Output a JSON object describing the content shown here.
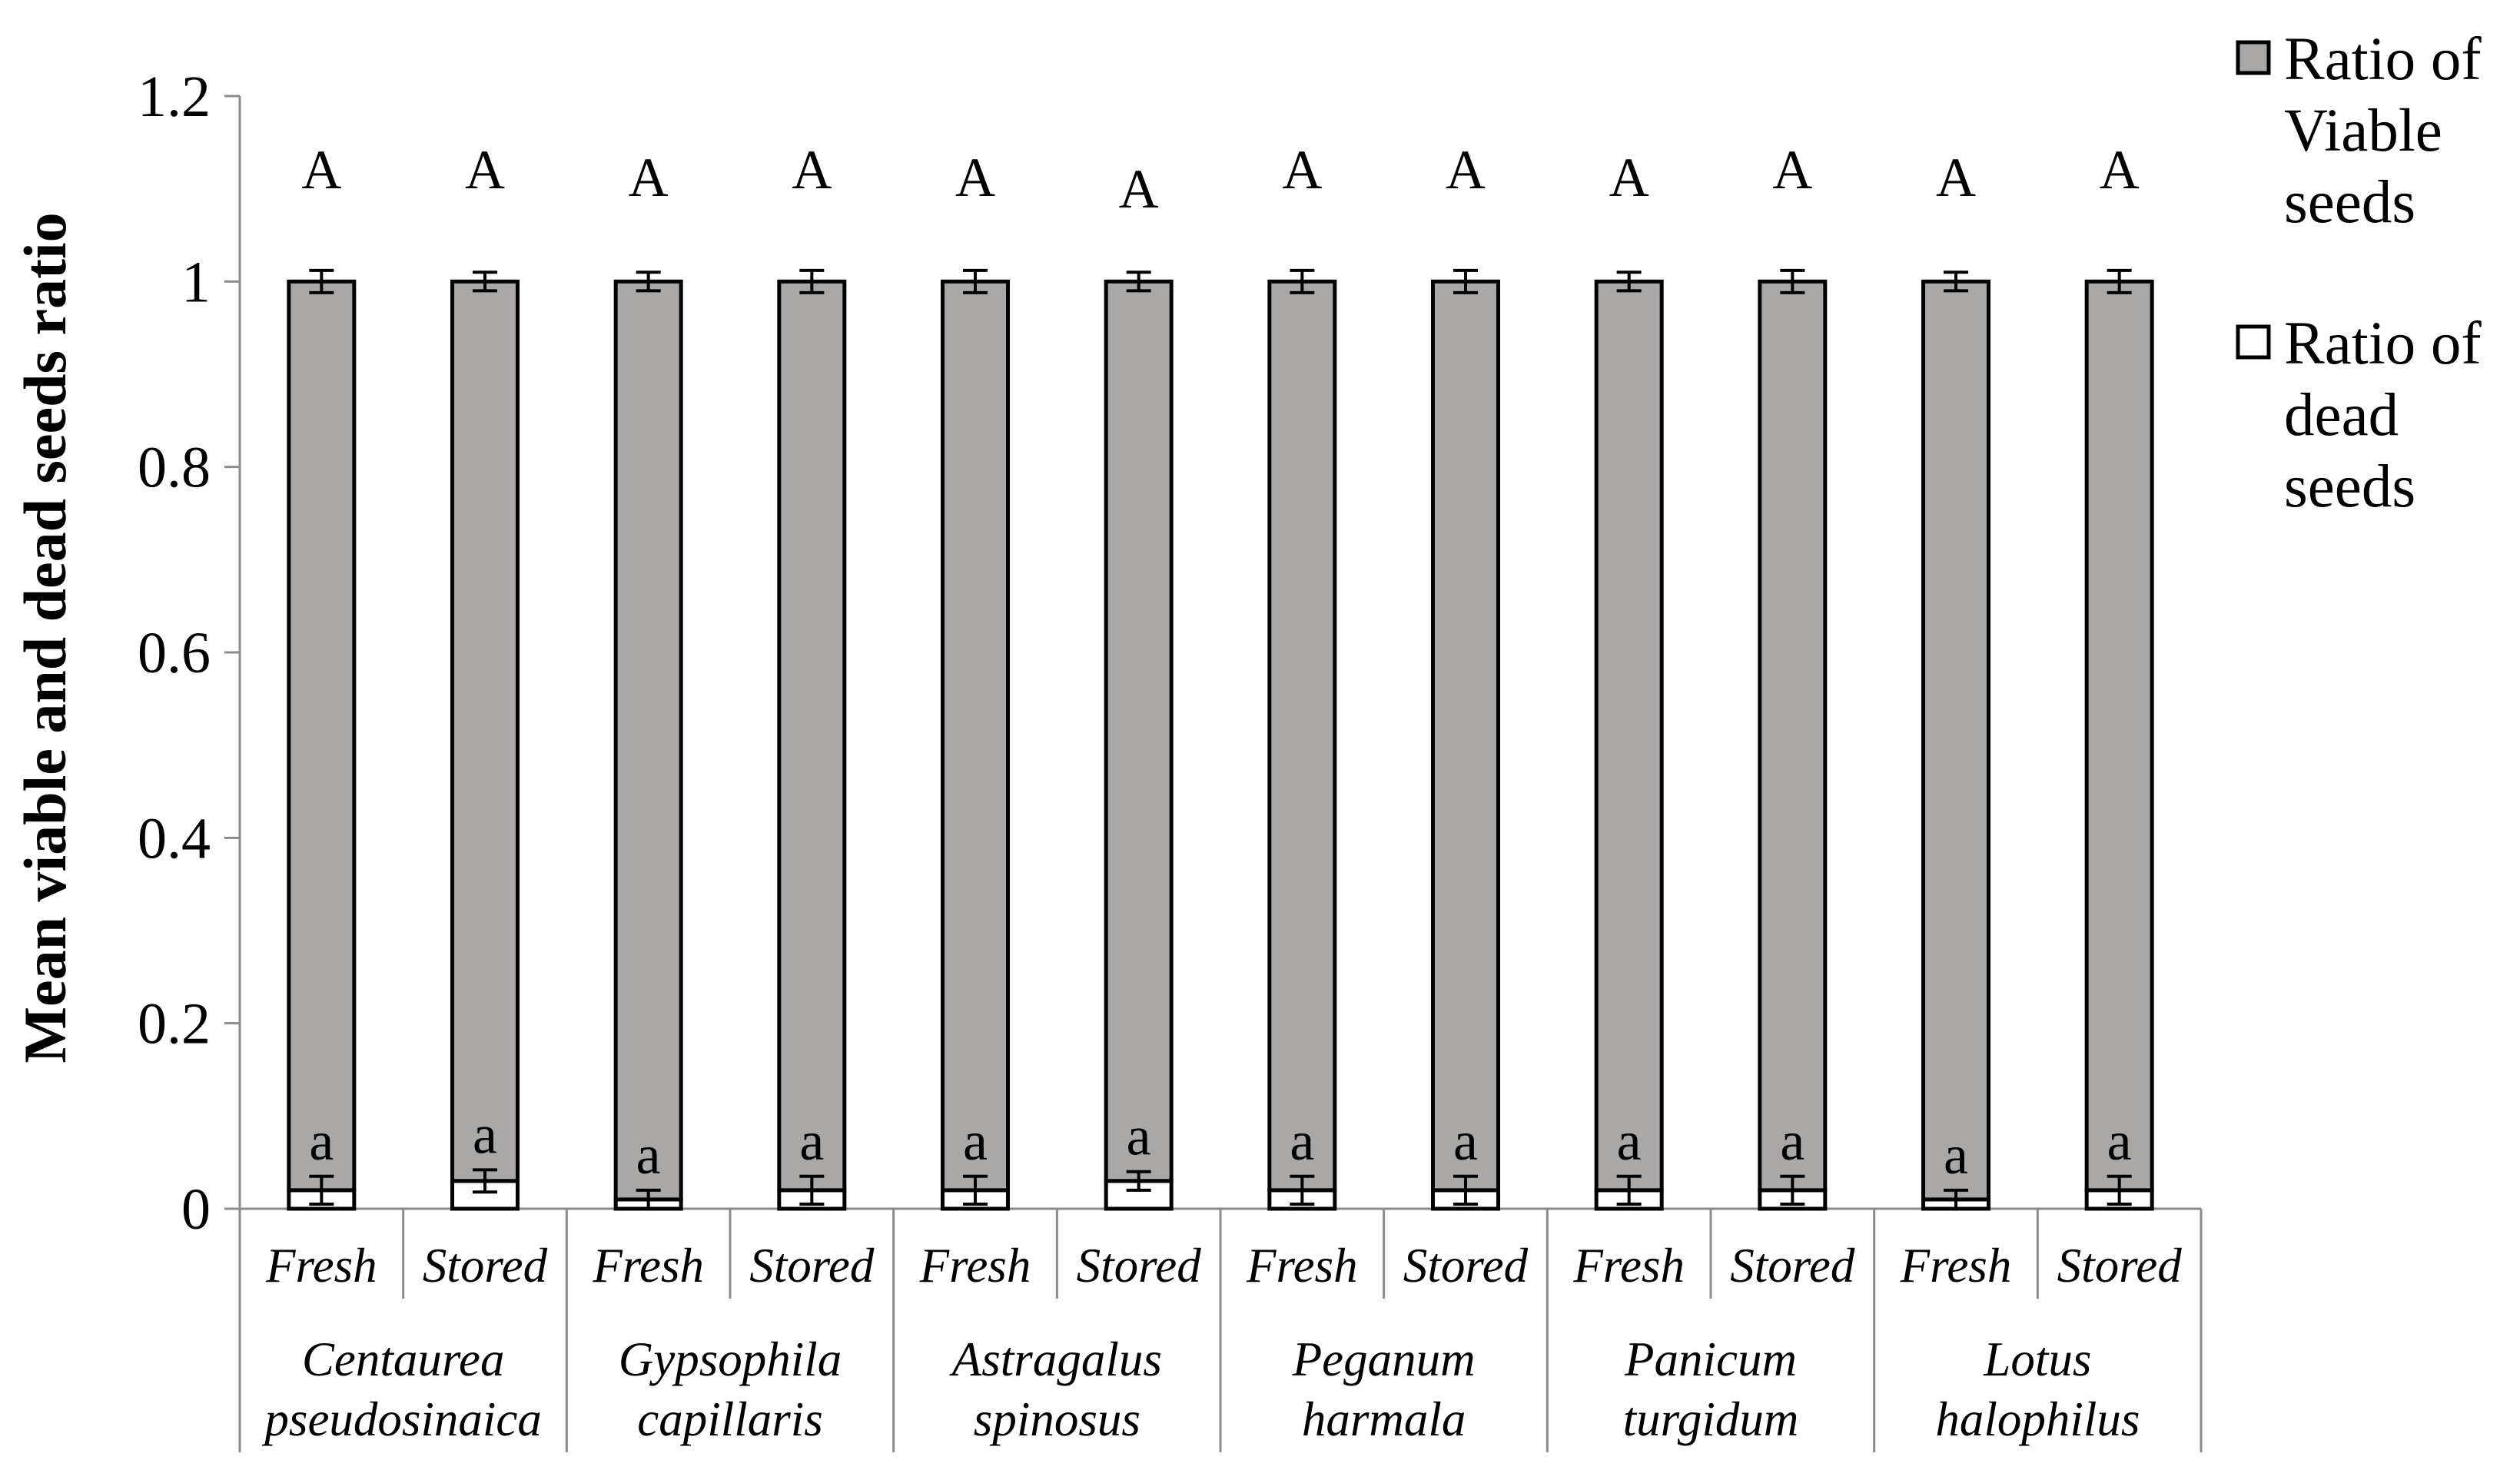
{
  "chart_data": {
    "type": "bar",
    "stacked": true,
    "title": "",
    "xlabel": "",
    "ylabel": "Mean viable and dead seeds ratio",
    "ylim": [
      0,
      1.2
    ],
    "yticks": [
      "0",
      "0.2",
      "0.4",
      "0.6",
      "0.8",
      "1",
      "1.2"
    ],
    "grid": false,
    "legend_position": "top-right",
    "groups": [
      {
        "line1": "Centaurea",
        "line2": "pseudosinaica"
      },
      {
        "line1": "Gypsophila",
        "line2": "capillaris"
      },
      {
        "line1": "Astragalus",
        "line2": "spinosus"
      },
      {
        "line1": "Peganum",
        "line2": "harmala"
      },
      {
        "line1": "Panicum",
        "line2": "turgidum"
      },
      {
        "line1": "Lotus",
        "line2": "halophilus"
      }
    ],
    "categories": [
      "Fresh",
      "Stored",
      "Fresh",
      "Stored",
      "Fresh",
      "Stored",
      "Fresh",
      "Stored",
      "Fresh",
      "Stored",
      "Fresh",
      "Stored"
    ],
    "series": [
      {
        "name": "Ratio of dead seeds",
        "legend_lines": [
          "Ratio of",
          "dead",
          "seeds"
        ],
        "color": "#ffffff",
        "values": [
          0.02,
          0.03,
          0.01,
          0.02,
          0.02,
          0.03,
          0.02,
          0.02,
          0.02,
          0.02,
          0.01,
          0.02
        ],
        "error": [
          0.015,
          0.012,
          0.01,
          0.015,
          0.015,
          0.01,
          0.015,
          0.015,
          0.015,
          0.015,
          0.01,
          0.015
        ],
        "letters": [
          "a",
          "a",
          "a",
          "a",
          "a",
          "a",
          "a",
          "a",
          "a",
          "a",
          "a",
          "a"
        ]
      },
      {
        "name": "Ratio of Viable seeds",
        "legend_lines": [
          "Ratio of",
          "Viable",
          "seeds"
        ],
        "color": "#aaa7a7",
        "values": [
          0.98,
          0.97,
          0.99,
          0.98,
          0.98,
          0.97,
          0.98,
          0.98,
          0.98,
          0.98,
          0.99,
          0.98
        ],
        "error": [
          0.012,
          0.01,
          0.01,
          0.012,
          0.012,
          0.01,
          0.012,
          0.012,
          0.01,
          0.012,
          0.01,
          0.012
        ],
        "letters": [
          "A",
          "A",
          "A",
          "A",
          "A",
          "A",
          "A",
          "A",
          "A",
          "A",
          "A",
          "A"
        ]
      }
    ]
  }
}
